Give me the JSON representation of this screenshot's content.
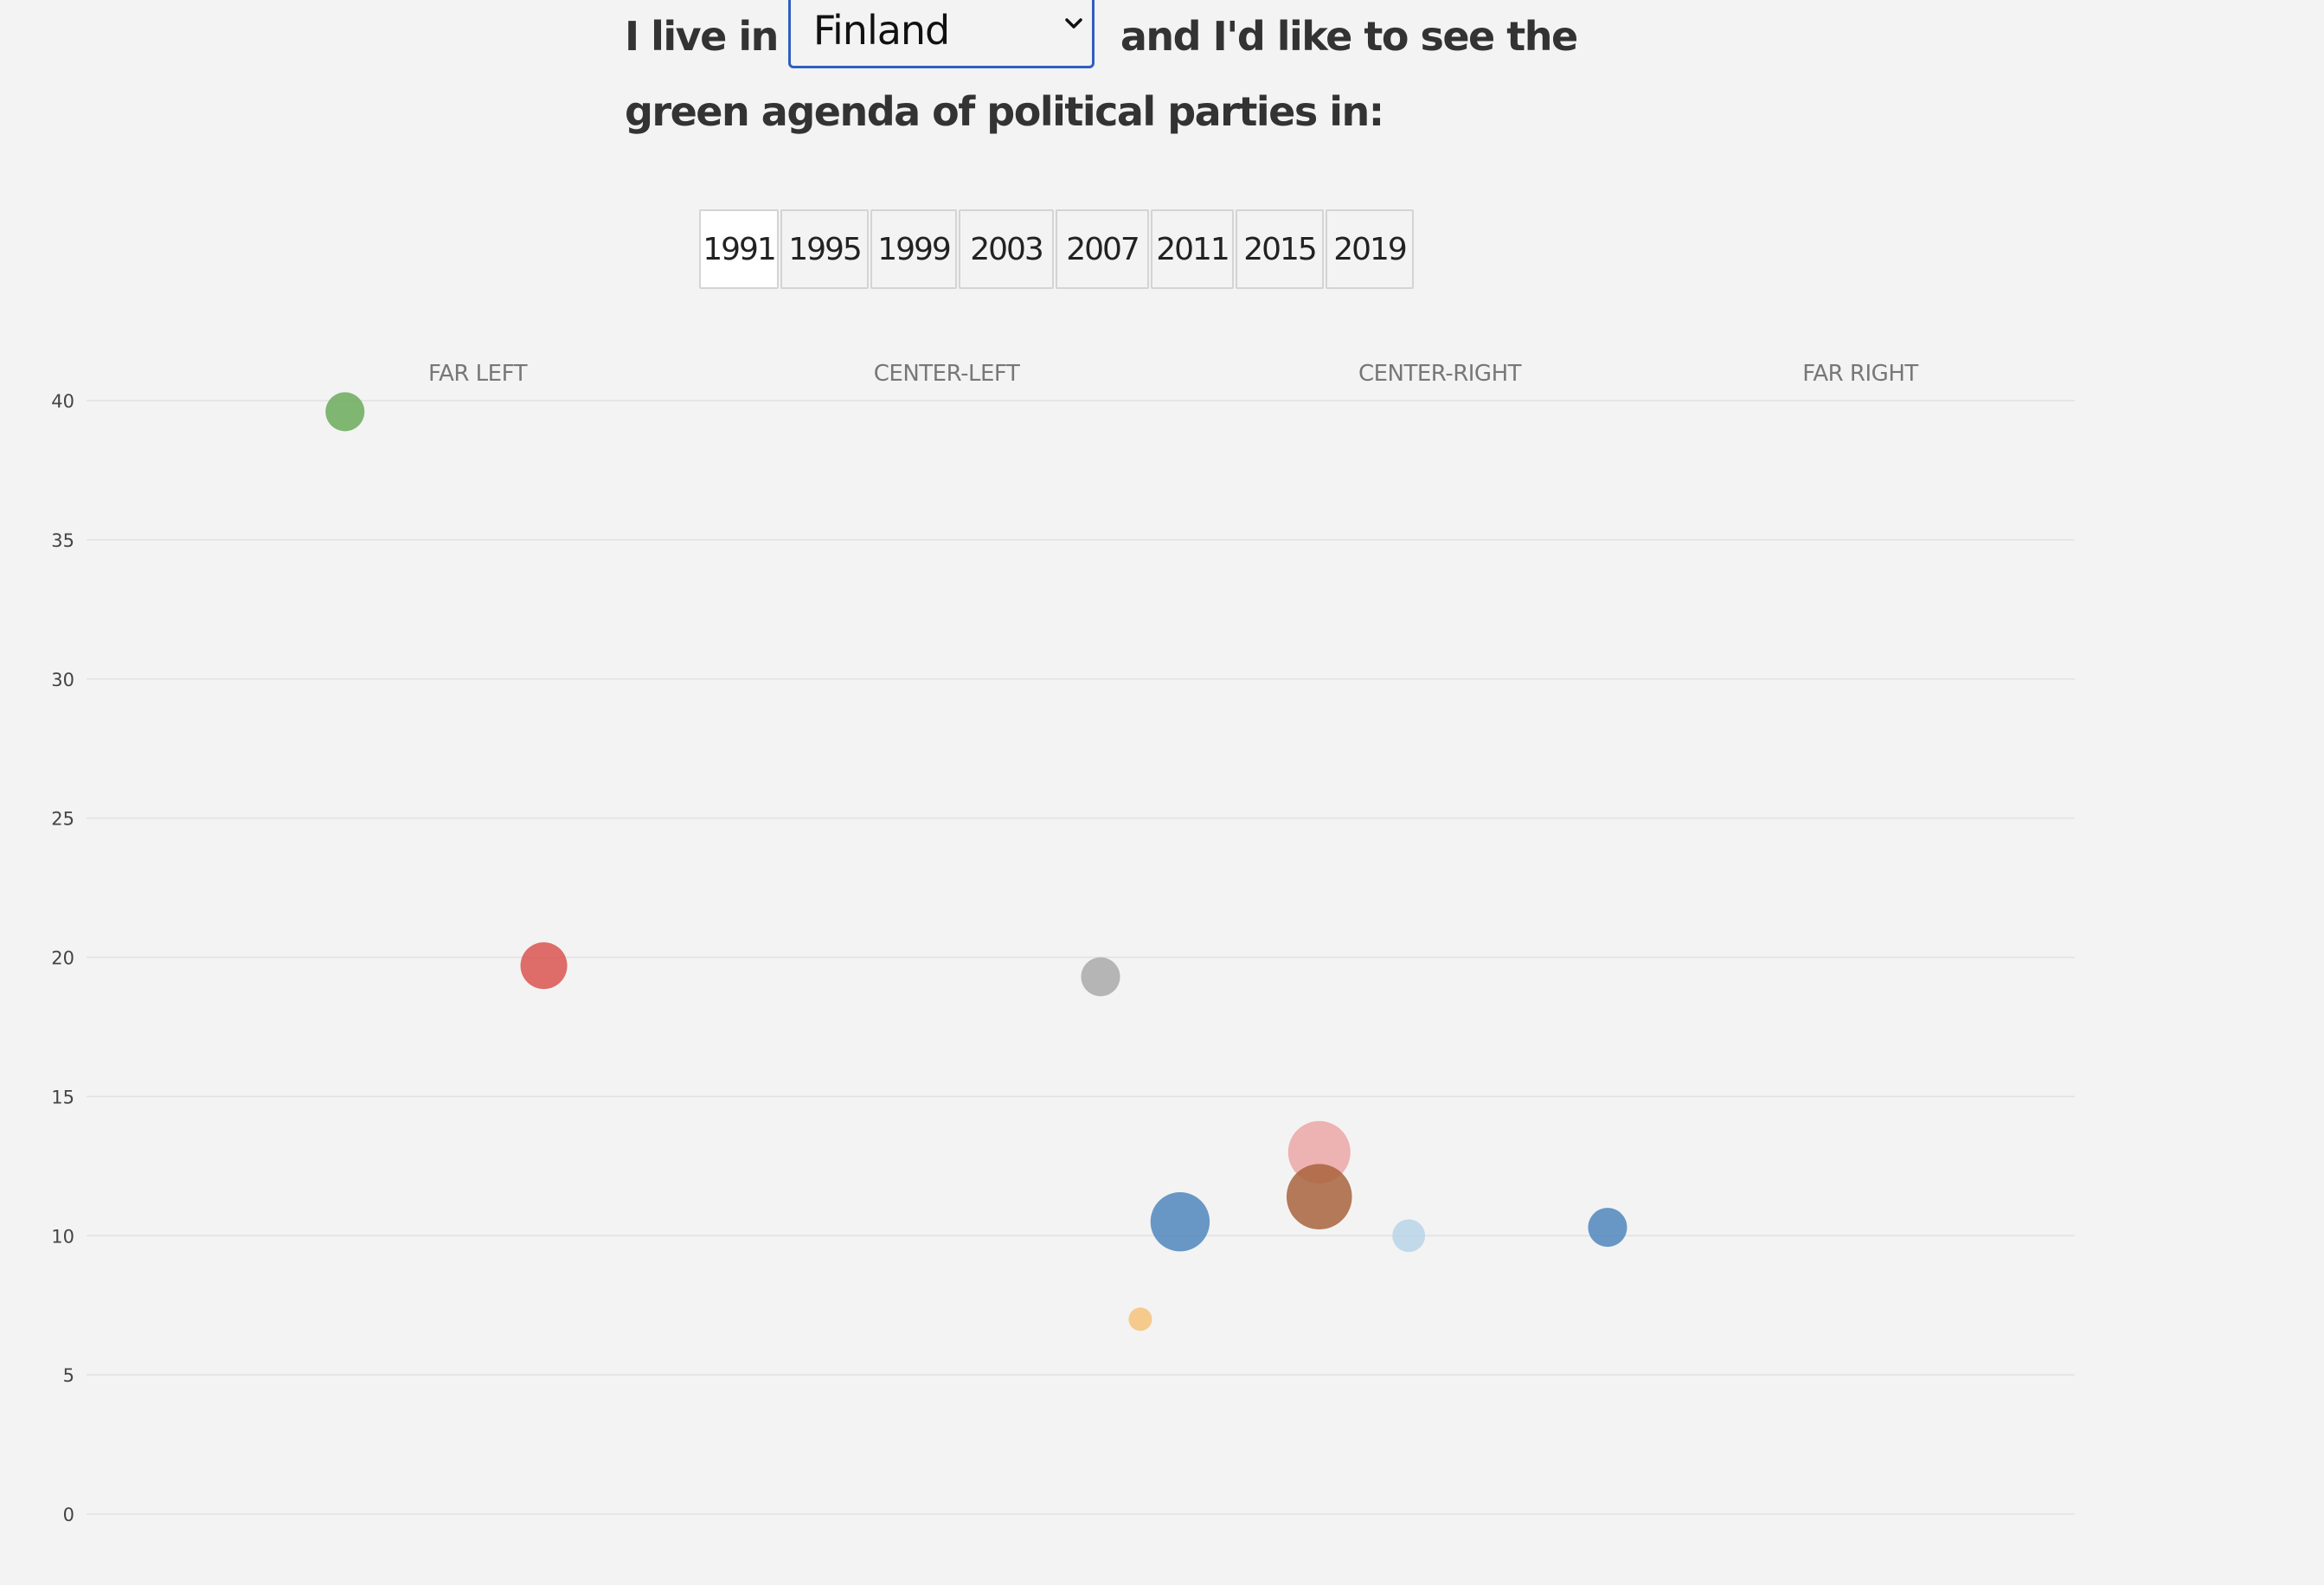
{
  "intro": {
    "prefix": "I live in",
    "suffix": "and I'd like to see the",
    "line2": "green agenda of political parties in:"
  },
  "country_select": {
    "value": "Finland",
    "icon": "chevron-down-icon"
  },
  "years": {
    "options": [
      "1991",
      "1995",
      "1999",
      "2003",
      "2007",
      "2011",
      "2015",
      "2019"
    ],
    "selected": "1991"
  },
  "chart_data": {
    "type": "scatter",
    "title": "",
    "xlabel": "",
    "ylabel": "",
    "ylim": [
      0,
      40
    ],
    "yticks": [
      0,
      5,
      10,
      15,
      20,
      25,
      30,
      35,
      40
    ],
    "xlim": [
      0,
      10
    ],
    "x_zones": [
      "FAR LEFT",
      "CENTER-LEFT",
      "CENTER-RIGHT",
      "FAR RIGHT"
    ],
    "grid": true,
    "points": [
      {
        "x": 1.3,
        "y": 39.6,
        "size": 2.5,
        "color": "#6aaa5a"
      },
      {
        "x": 2.3,
        "y": 19.7,
        "size": 3.0,
        "color": "#d9534f"
      },
      {
        "x": 5.1,
        "y": 19.3,
        "size": 2.5,
        "color": "#a9a9a9"
      },
      {
        "x": 5.3,
        "y": 7.0,
        "size": 1.5,
        "color": "#f5c27a"
      },
      {
        "x": 5.5,
        "y": 10.5,
        "size": 3.8,
        "color": "#4f86bd"
      },
      {
        "x": 6.2,
        "y": 13.0,
        "size": 4.0,
        "color": "#eba6a6"
      },
      {
        "x": 6.2,
        "y": 11.4,
        "size": 4.2,
        "color": "#a8633c"
      },
      {
        "x": 6.65,
        "y": 10.0,
        "size": 2.1,
        "color": "#b8d3e8"
      },
      {
        "x": 7.65,
        "y": 10.3,
        "size": 2.5,
        "color": "#4f86bd"
      }
    ]
  }
}
